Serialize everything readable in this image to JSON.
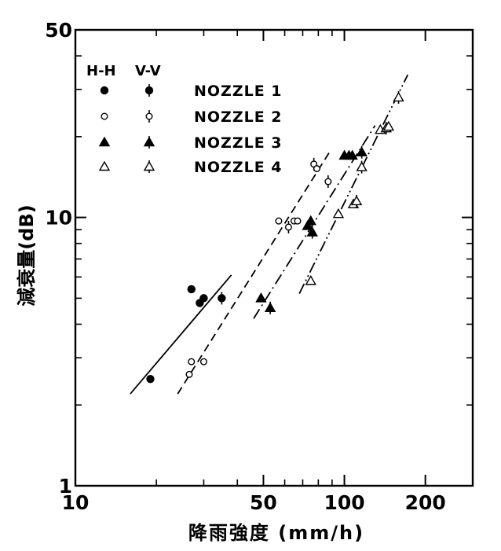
{
  "chart_data": {
    "type": "scatter",
    "x_scale": "log",
    "y_scale": "log",
    "xlabel": "降雨強度 (mm/h)",
    "ylabel": "減衰量(dB)",
    "xlim": [
      10,
      300
    ],
    "ylim": [
      1,
      50
    ],
    "x_tick_labels": [
      {
        "value": 10,
        "label": "10"
      },
      {
        "value": 50,
        "label": "50"
      },
      {
        "value": 100,
        "label": "100"
      },
      {
        "value": 200,
        "label": "200"
      }
    ],
    "y_tick_labels": [
      {
        "value": 1,
        "label": "1"
      },
      {
        "value": 10,
        "label": "10"
      },
      {
        "value": 50,
        "label": "50"
      }
    ],
    "x_minor_ticks": [
      20,
      30,
      40,
      60,
      70,
      80,
      90,
      300
    ],
    "y_minor_ticks": [
      2,
      3,
      4,
      5,
      6,
      7,
      8,
      9,
      20,
      30,
      40
    ],
    "legend": {
      "placement": "top-left",
      "header_hh": "H-H",
      "header_vv": "V-V"
    },
    "series": [
      {
        "name": "NOZZLE 1",
        "marker": "filled-circle",
        "line_style": "solid",
        "points": [
          {
            "x": 19,
            "y": 2.5,
            "pol": "H-H"
          },
          {
            "x": 27,
            "y": 5.4,
            "pol": "H-H"
          },
          {
            "x": 29,
            "y": 4.8,
            "pol": "H-H"
          },
          {
            "x": 30,
            "y": 5.0,
            "pol": "H-H"
          },
          {
            "x": 35,
            "y": 5.0,
            "pol": "V-V"
          }
        ],
        "fit_line": [
          [
            16,
            2.2
          ],
          [
            38,
            6.1
          ]
        ]
      },
      {
        "name": "NOZZLE 2",
        "marker": "open-circle",
        "line_style": "dashed",
        "points": [
          {
            "x": 26.5,
            "y": 2.6,
            "pol": "H-H"
          },
          {
            "x": 27,
            "y": 2.9,
            "pol": "H-H"
          },
          {
            "x": 30,
            "y": 2.9,
            "pol": "H-H"
          },
          {
            "x": 57,
            "y": 9.7,
            "pol": "H-H"
          },
          {
            "x": 62,
            "y": 9.2,
            "pol": "V-V"
          },
          {
            "x": 65,
            "y": 9.7,
            "pol": "H-H"
          },
          {
            "x": 67,
            "y": 9.7,
            "pol": "H-H"
          },
          {
            "x": 77,
            "y": 15.8,
            "pol": "V-V"
          },
          {
            "x": 79,
            "y": 15.2,
            "pol": "H-H"
          },
          {
            "x": 87,
            "y": 13.6,
            "pol": "V-V"
          }
        ],
        "fit_line": [
          [
            24,
            2.2
          ],
          [
            88,
            17.5
          ]
        ]
      },
      {
        "name": "NOZZLE 3",
        "marker": "filled-triangle",
        "line_style": "dash-dot",
        "points": [
          {
            "x": 49,
            "y": 5.0,
            "pol": "H-H"
          },
          {
            "x": 53,
            "y": 4.6,
            "pol": "V-V"
          },
          {
            "x": 73,
            "y": 9.3,
            "pol": "H-H"
          },
          {
            "x": 75,
            "y": 9.7,
            "pol": "H-H"
          },
          {
            "x": 76,
            "y": 8.8,
            "pol": "V-V"
          },
          {
            "x": 100,
            "y": 17.0,
            "pol": "H-H"
          },
          {
            "x": 104,
            "y": 17.0,
            "pol": "H-H"
          },
          {
            "x": 107,
            "y": 17.0,
            "pol": "H-H"
          },
          {
            "x": 116,
            "y": 17.5,
            "pol": "V-V"
          }
        ],
        "fit_line": [
          [
            46,
            4.2
          ],
          [
            130,
            22.0
          ]
        ]
      },
      {
        "name": "NOZZLE 4",
        "marker": "open-triangle",
        "line_style": "dash-dot-dot",
        "points": [
          {
            "x": 75,
            "y": 5.8,
            "pol": "H-H"
          },
          {
            "x": 95,
            "y": 10.3,
            "pol": "H-H"
          },
          {
            "x": 108,
            "y": 11.2,
            "pol": "H-H"
          },
          {
            "x": 111,
            "y": 11.5,
            "pol": "V-V"
          },
          {
            "x": 116,
            "y": 15.4,
            "pol": "V-V"
          },
          {
            "x": 136,
            "y": 21.2,
            "pol": "H-H"
          },
          {
            "x": 143,
            "y": 21.5,
            "pol": "V-V"
          },
          {
            "x": 146,
            "y": 21.8,
            "pol": "H-H"
          },
          {
            "x": 159,
            "y": 28.0,
            "pol": "V-V"
          }
        ],
        "fit_line": [
          [
            68,
            5.2
          ],
          [
            172,
            34.0
          ]
        ]
      }
    ]
  }
}
